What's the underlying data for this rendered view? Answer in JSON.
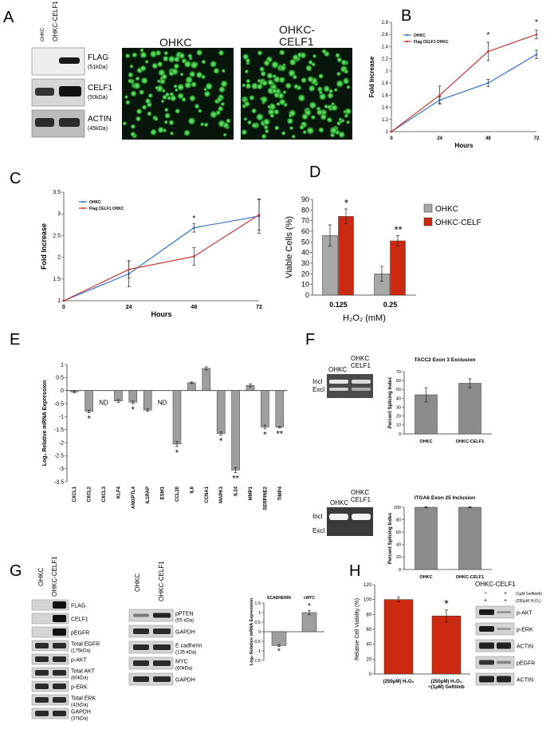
{
  "panels": {
    "A": {
      "letter": "A",
      "lanes": [
        "OHKC",
        "OHKC-CELF1"
      ],
      "blots": [
        {
          "name": "FLAG",
          "kda": "(51kDa)"
        },
        {
          "name": "CELF1",
          "kda": "(50kDa)"
        },
        {
          "name": "ACTIN",
          "kda": "(45kDa)"
        }
      ],
      "micro_labels": [
        "OHKC",
        "OHKC-\nCELF1"
      ]
    },
    "B": {
      "letter": "B"
    },
    "C": {
      "letter": "C"
    },
    "D": {
      "letter": "D"
    },
    "E": {
      "letter": "E"
    },
    "F": {
      "letter": "F",
      "gel_lanes": [
        "OHKC",
        "OHKC CELF1"
      ],
      "incl": "Incl",
      "excl": "Excl"
    },
    "G": {
      "letter": "G",
      "lanes": [
        "OHKC",
        "OHKC-CELF1"
      ],
      "blots_left": [
        {
          "name": "FLAG",
          "kda": ""
        },
        {
          "name": "CELF1",
          "kda": ""
        },
        {
          "name": "pEGFR",
          "kda": ""
        },
        {
          "name": "Total EGFR",
          "kda": "(175kDa)"
        },
        {
          "name": "p-AKT",
          "kda": ""
        },
        {
          "name": "Total AKT",
          "kda": "(60kDa)"
        },
        {
          "name": "p-ERK",
          "kda": ""
        },
        {
          "name": "Total ERK",
          "kda": "(42kDa)"
        },
        {
          "name": "GAPDH",
          "kda": "(37kDa)"
        }
      ],
      "blots_mid": [
        {
          "name": "pPTEN",
          "kda": "(55 kDa)"
        },
        {
          "name": "GAPDH",
          "kda": ""
        },
        {
          "name": "E cadherin",
          "kda": "(135 kDa)"
        },
        {
          "name": "MYC",
          "kda": "(60kDa)"
        },
        {
          "name": "GAPDH",
          "kda": ""
        }
      ]
    },
    "H": {
      "letter": "H",
      "blot_title": "OHKC-CELF1",
      "treat_gef": "(1μM Gefitinib)",
      "treat_h2o2": "(250μM H₂O₂)",
      "signs_gef": [
        "−",
        "+"
      ],
      "signs_h2o2": [
        "+",
        "+"
      ],
      "blots": [
        "p-AKT",
        "p-ERK",
        "ACTIN",
        "pEGFR",
        "ACTIN"
      ]
    }
  },
  "chart_data": [
    {
      "id": "B",
      "type": "line",
      "x": [
        0,
        24,
        48,
        72
      ],
      "series": [
        {
          "name": "OHKC",
          "color": "#3a6fbf",
          "values": [
            1.0,
            1.52,
            1.8,
            2.27
          ],
          "err": [
            0,
            0.05,
            0.06,
            0.07
          ]
        },
        {
          "name": "Flag CELF1 OHKC",
          "color": "#c0393b",
          "values": [
            1.0,
            1.6,
            2.32,
            2.6
          ],
          "err": [
            0,
            0.15,
            0.15,
            0.07
          ]
        }
      ],
      "xlabel": "Hours",
      "ylabel": "Fold Increase",
      "yticks": [
        1,
        1.2,
        1.4,
        1.6,
        1.8,
        2,
        2.2,
        2.4,
        2.6,
        2.8
      ],
      "xticks": [
        0,
        24,
        48,
        72
      ],
      "ylim": [
        1,
        2.8
      ],
      "stars": [
        {
          "x": 48,
          "y": 2.55,
          "t": "*"
        },
        {
          "x": 72,
          "y": 2.76,
          "t": "*"
        }
      ]
    },
    {
      "id": "C",
      "type": "line",
      "x": [
        0,
        24,
        48,
        72
      ],
      "series": [
        {
          "name": "OHKC",
          "color": "#3a6fbf",
          "values": [
            1.0,
            1.62,
            2.68,
            2.95
          ],
          "err": [
            0,
            0.3,
            0.1,
            0.4
          ]
        },
        {
          "name": "Flag CELF1 OHKC",
          "color": "#c0393b",
          "values": [
            1.0,
            1.72,
            2.02,
            2.98
          ],
          "err": [
            0,
            0.2,
            0.2,
            0.35
          ]
        }
      ],
      "xlabel": "Hours",
      "ylabel": "Fold Increase",
      "yticks": [
        1,
        1.5,
        2,
        2.5,
        3,
        3.5
      ],
      "xticks": [
        0,
        24,
        48,
        72
      ],
      "ylim": [
        1,
        3.5
      ],
      "stars": [
        {
          "x": 48,
          "y": 2.84,
          "t": "*"
        }
      ]
    },
    {
      "id": "D",
      "type": "bar",
      "categories": [
        "0.125",
        "0.25"
      ],
      "series": [
        {
          "name": "OHKC",
          "color": "#a8a8a8",
          "values": [
            56,
            20
          ],
          "err": [
            10,
            7
          ]
        },
        {
          "name": "OHKC-CELF",
          "color": "#cc2a10",
          "values": [
            74,
            51
          ],
          "err": [
            7,
            5
          ]
        }
      ],
      "ylabel": "Viable Cells (%)",
      "xlabel": "H₂O₂ (mM)",
      "yticks": [
        0,
        10,
        20,
        30,
        40,
        50,
        60,
        70,
        80,
        90
      ],
      "ylim": [
        0,
        90
      ],
      "stars": [
        {
          "cat": 0,
          "series": 1,
          "t": "*"
        },
        {
          "cat": 1,
          "series": 1,
          "t": "**"
        }
      ]
    },
    {
      "id": "E",
      "type": "bar",
      "categories": [
        "CXCL1",
        "CXCL2",
        "CXCL3",
        "KLF4",
        "ANGPTL4",
        "IL1RAP",
        "ESM1",
        "CCL20",
        "IL8",
        "CCNA1",
        "MAPK3",
        "IL24",
        "MMP1",
        "SERPINE2",
        "TIMP4"
      ],
      "values": [
        -0.05,
        -0.8,
        null,
        -0.4,
        -0.45,
        -0.75,
        null,
        -2.05,
        0.3,
        0.85,
        -1.65,
        -3.05,
        0.2,
        -1.4,
        -1.4
      ],
      "err": [
        0.03,
        0.05,
        0,
        0.05,
        0.05,
        0.05,
        0,
        0.1,
        0.03,
        0.06,
        0.06,
        0.1,
        0.06,
        0.07,
        0.03
      ],
      "labels": [
        null,
        null,
        "ND",
        null,
        null,
        null,
        "ND",
        null,
        null,
        null,
        null,
        null,
        null,
        null,
        null
      ],
      "stars": [
        "",
        "*",
        "",
        "",
        "*",
        "",
        "",
        "*",
        "",
        "",
        "*",
        "**",
        "",
        "*",
        "**"
      ],
      "ylabel": "Log₂ Relative mRNA Expression",
      "yticks": [
        1,
        0.5,
        0,
        -0.5,
        -1,
        -1.5,
        -2,
        -2.5,
        -3,
        -3.5
      ],
      "ylim": [
        -3.5,
        1
      ]
    },
    {
      "id": "F1",
      "type": "bar",
      "title": "TACC2 Exon 3 Exclusion",
      "categories": [
        "OHKC",
        "OHKC-CELF1"
      ],
      "values": [
        44,
        57
      ],
      "err": [
        8,
        5
      ],
      "ylabel": "Percent Splicing Index",
      "yticks": [
        0,
        10,
        20,
        30,
        40,
        50,
        60,
        70
      ],
      "ylim": [
        0,
        70
      ]
    },
    {
      "id": "F2",
      "type": "bar",
      "title": "ITGA6 Exon 25 Inclusion",
      "categories": [
        "OHKC",
        "OHKC-CELF1"
      ],
      "values": [
        100,
        100
      ],
      "err": [
        1,
        1
      ],
      "ylabel": "Percent Splicing Index",
      "yticks": [
        0,
        20,
        40,
        60,
        80,
        100
      ],
      "ylim": [
        0,
        100
      ]
    },
    {
      "id": "G",
      "type": "bar",
      "categories": [
        "ECADHERIN",
        "cMYC"
      ],
      "values": [
        -0.72,
        1.0
      ],
      "err": [
        0.05,
        0.12
      ],
      "stars": [
        "*",
        "*"
      ],
      "ylabel": "Log₂ Relative mRNA Expression",
      "yticks": [
        1.5,
        1,
        0.5,
        0,
        -0.5,
        -1,
        -1.5
      ],
      "ylim": [
        -1.5,
        1.5
      ]
    },
    {
      "id": "H",
      "type": "bar",
      "categories": [
        "(250μM) H₂O₂",
        "(250μM) H₂O₂ +(1μM) Gefitinib"
      ],
      "values": [
        100,
        78
      ],
      "err": [
        3,
        8
      ],
      "stars": [
        "",
        "*"
      ],
      "ylabel": "Relative Cell Viability (%)",
      "yticks": [
        0,
        20,
        40,
        60,
        80,
        100,
        120
      ],
      "ylim": [
        0,
        120
      ]
    }
  ]
}
